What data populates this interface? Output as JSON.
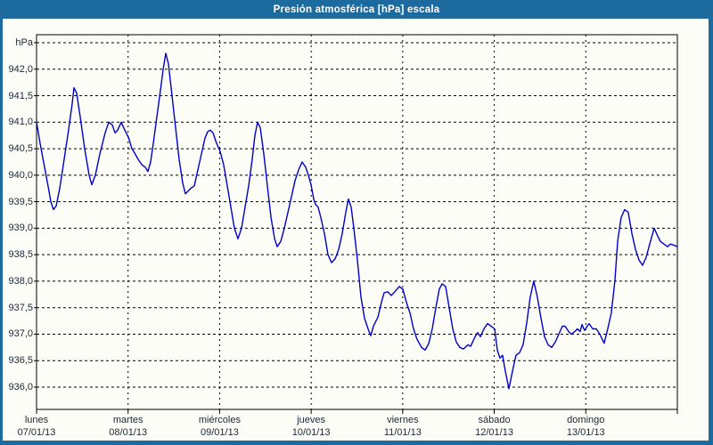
{
  "window": {
    "title": "Presión atmosférica [hPa] escala"
  },
  "colors": {
    "frame": "#1d6b9e",
    "titlebar": "#1d6b9e",
    "title_text": "#ffffff",
    "paper": "#fdfdf8",
    "plot_border": "#000000",
    "grid": "#000000",
    "axis_text": "#1c2735",
    "line": "#0000c8"
  },
  "chart_data": {
    "type": "line",
    "title": "Presión atmosférica [hPa] escala",
    "unit": "hPa",
    "legend": "none",
    "grid": "black dashed; horizontal every 0.5 hPa, vertical at day boundaries",
    "ylim": [
      935.6,
      942.65
    ],
    "y_axis": {
      "top_value": 942.5,
      "bottom_value": 936.0,
      "tick_step": 0.5,
      "tick_labels": [
        "hPa",
        "942,0",
        "941,5",
        "941,0",
        "940,5",
        "940,0",
        "939,5",
        "939,0",
        "938,5",
        "938,0",
        "937,5",
        "937,0",
        "936,5",
        "936,0"
      ]
    },
    "x_days": [
      {
        "weekday": "lunes",
        "date": "07/01/13"
      },
      {
        "weekday": "martes",
        "date": "08/01/13"
      },
      {
        "weekday": "miércoles",
        "date": "09/01/13"
      },
      {
        "weekday": "jueves",
        "date": "10/01/13"
      },
      {
        "weekday": "viernes",
        "date": "11/01/13"
      },
      {
        "weekday": "sábado",
        "date": "12/01/13"
      },
      {
        "weekday": "domingo",
        "date": "13/01/13"
      }
    ],
    "series": [
      {
        "name": "Presión atmosférica",
        "color": "#0000c8",
        "x_unit": "days since 07/01/13 00:00",
        "points": [
          [
            0.0,
            941.0
          ],
          [
            0.039,
            940.6
          ],
          [
            0.088,
            940.15
          ],
          [
            0.136,
            939.7
          ],
          [
            0.156,
            939.5
          ],
          [
            0.185,
            939.35
          ],
          [
            0.214,
            939.42
          ],
          [
            0.253,
            939.75
          ],
          [
            0.302,
            940.3
          ],
          [
            0.35,
            940.85
          ],
          [
            0.389,
            941.35
          ],
          [
            0.409,
            941.65
          ],
          [
            0.438,
            941.55
          ],
          [
            0.477,
            941.1
          ],
          [
            0.526,
            940.5
          ],
          [
            0.574,
            940.0
          ],
          [
            0.604,
            939.82
          ],
          [
            0.643,
            940.0
          ],
          [
            0.691,
            940.4
          ],
          [
            0.75,
            940.8
          ],
          [
            0.789,
            941.0
          ],
          [
            0.828,
            940.95
          ],
          [
            0.857,
            940.8
          ],
          [
            0.886,
            940.85
          ],
          [
            0.925,
            941.0
          ],
          [
            0.964,
            940.85
          ],
          [
            1.003,
            940.72
          ],
          [
            1.042,
            940.5
          ],
          [
            1.071,
            940.42
          ],
          [
            1.11,
            940.3
          ],
          [
            1.149,
            940.2
          ],
          [
            1.188,
            940.15
          ],
          [
            1.217,
            940.07
          ],
          [
            1.246,
            940.25
          ],
          [
            1.275,
            940.6
          ],
          [
            1.314,
            941.1
          ],
          [
            1.353,
            941.6
          ],
          [
            1.383,
            942.0
          ],
          [
            1.412,
            942.3
          ],
          [
            1.441,
            942.1
          ],
          [
            1.48,
            941.5
          ],
          [
            1.519,
            940.9
          ],
          [
            1.558,
            940.3
          ],
          [
            1.597,
            939.85
          ],
          [
            1.626,
            939.65
          ],
          [
            1.655,
            939.7
          ],
          [
            1.684,
            939.75
          ],
          [
            1.723,
            939.8
          ],
          [
            1.762,
            940.1
          ],
          [
            1.801,
            940.4
          ],
          [
            1.84,
            940.7
          ],
          [
            1.869,
            940.82
          ],
          [
            1.898,
            940.85
          ],
          [
            1.928,
            940.8
          ],
          [
            1.967,
            940.6
          ],
          [
            2.006,
            940.45
          ],
          [
            2.044,
            940.2
          ],
          [
            2.083,
            939.8
          ],
          [
            2.122,
            939.4
          ],
          [
            2.161,
            939.0
          ],
          [
            2.2,
            938.8
          ],
          [
            2.239,
            939.0
          ],
          [
            2.278,
            939.4
          ],
          [
            2.317,
            939.8
          ],
          [
            2.356,
            940.3
          ],
          [
            2.385,
            940.75
          ],
          [
            2.414,
            941.0
          ],
          [
            2.444,
            940.9
          ],
          [
            2.483,
            940.4
          ],
          [
            2.522,
            939.8
          ],
          [
            2.561,
            939.2
          ],
          [
            2.6,
            938.8
          ],
          [
            2.629,
            938.65
          ],
          [
            2.668,
            938.75
          ],
          [
            2.707,
            939.0
          ],
          [
            2.746,
            939.3
          ],
          [
            2.785,
            939.6
          ],
          [
            2.824,
            939.9
          ],
          [
            2.862,
            940.1
          ],
          [
            2.901,
            940.25
          ],
          [
            2.94,
            940.15
          ],
          [
            2.969,
            940.0
          ],
          [
            2.999,
            939.82
          ],
          [
            3.028,
            939.55
          ],
          [
            3.047,
            939.45
          ],
          [
            3.076,
            939.4
          ],
          [
            3.106,
            939.2
          ],
          [
            3.145,
            938.9
          ],
          [
            3.184,
            938.5
          ],
          [
            3.223,
            938.35
          ],
          [
            3.261,
            938.42
          ],
          [
            3.3,
            938.6
          ],
          [
            3.339,
            938.9
          ],
          [
            3.378,
            939.3
          ],
          [
            3.407,
            939.55
          ],
          [
            3.437,
            939.4
          ],
          [
            3.466,
            939.0
          ],
          [
            3.505,
            938.4
          ],
          [
            3.544,
            937.7
          ],
          [
            3.583,
            937.3
          ],
          [
            3.622,
            937.1
          ],
          [
            3.651,
            936.97
          ],
          [
            3.68,
            937.15
          ],
          [
            3.729,
            937.32
          ],
          [
            3.768,
            937.6
          ],
          [
            3.797,
            937.78
          ],
          [
            3.836,
            937.8
          ],
          [
            3.875,
            937.73
          ],
          [
            3.914,
            937.8
          ],
          [
            3.962,
            937.9
          ],
          [
            4.001,
            937.85
          ],
          [
            4.04,
            937.6
          ],
          [
            4.079,
            937.4
          ],
          [
            4.118,
            937.1
          ],
          [
            4.157,
            936.9
          ],
          [
            4.206,
            936.75
          ],
          [
            4.245,
            936.7
          ],
          [
            4.284,
            936.82
          ],
          [
            4.323,
            937.1
          ],
          [
            4.362,
            937.5
          ],
          [
            4.4,
            937.85
          ],
          [
            4.43,
            937.95
          ],
          [
            4.469,
            937.9
          ],
          [
            4.508,
            937.5
          ],
          [
            4.547,
            937.1
          ],
          [
            4.586,
            936.85
          ],
          [
            4.624,
            936.75
          ],
          [
            4.663,
            936.72
          ],
          [
            4.712,
            936.8
          ],
          [
            4.741,
            936.77
          ],
          [
            4.79,
            936.95
          ],
          [
            4.819,
            937.03
          ],
          [
            4.848,
            936.95
          ],
          [
            4.887,
            937.1
          ],
          [
            4.926,
            937.2
          ],
          [
            4.965,
            937.15
          ],
          [
            5.004,
            937.1
          ],
          [
            5.033,
            936.7
          ],
          [
            5.062,
            936.55
          ],
          [
            5.091,
            936.6
          ],
          [
            5.121,
            936.3
          ],
          [
            5.16,
            935.97
          ],
          [
            5.199,
            936.3
          ],
          [
            5.237,
            936.6
          ],
          [
            5.276,
            936.65
          ],
          [
            5.315,
            936.8
          ],
          [
            5.354,
            937.2
          ],
          [
            5.393,
            937.7
          ],
          [
            5.432,
            938.0
          ],
          [
            5.471,
            937.7
          ],
          [
            5.51,
            937.3
          ],
          [
            5.549,
            936.95
          ],
          [
            5.588,
            936.8
          ],
          [
            5.627,
            936.75
          ],
          [
            5.666,
            936.85
          ],
          [
            5.705,
            937.0
          ],
          [
            5.744,
            937.15
          ],
          [
            5.773,
            937.15
          ],
          [
            5.812,
            937.05
          ],
          [
            5.841,
            937.0
          ],
          [
            5.88,
            937.05
          ],
          [
            5.909,
            937.1
          ],
          [
            5.938,
            937.05
          ],
          [
            5.958,
            937.18
          ],
          [
            5.987,
            937.07
          ],
          [
            6.016,
            937.15
          ],
          [
            6.036,
            937.2
          ],
          [
            6.075,
            937.1
          ],
          [
            6.114,
            937.1
          ],
          [
            6.153,
            937.0
          ],
          [
            6.201,
            936.83
          ],
          [
            6.24,
            937.1
          ],
          [
            6.279,
            937.4
          ],
          [
            6.318,
            938.0
          ],
          [
            6.348,
            938.75
          ],
          [
            6.386,
            939.2
          ],
          [
            6.425,
            939.35
          ],
          [
            6.464,
            939.3
          ],
          [
            6.503,
            938.9
          ],
          [
            6.542,
            938.6
          ],
          [
            6.581,
            938.4
          ],
          [
            6.62,
            938.3
          ],
          [
            6.659,
            938.45
          ],
          [
            6.698,
            938.7
          ],
          [
            6.747,
            939.0
          ],
          [
            6.786,
            938.85
          ],
          [
            6.815,
            938.75
          ],
          [
            6.854,
            938.7
          ],
          [
            6.893,
            938.65
          ],
          [
            6.922,
            938.7
          ],
          [
            6.961,
            938.68
          ],
          [
            7.0,
            938.65
          ]
        ]
      }
    ]
  }
}
